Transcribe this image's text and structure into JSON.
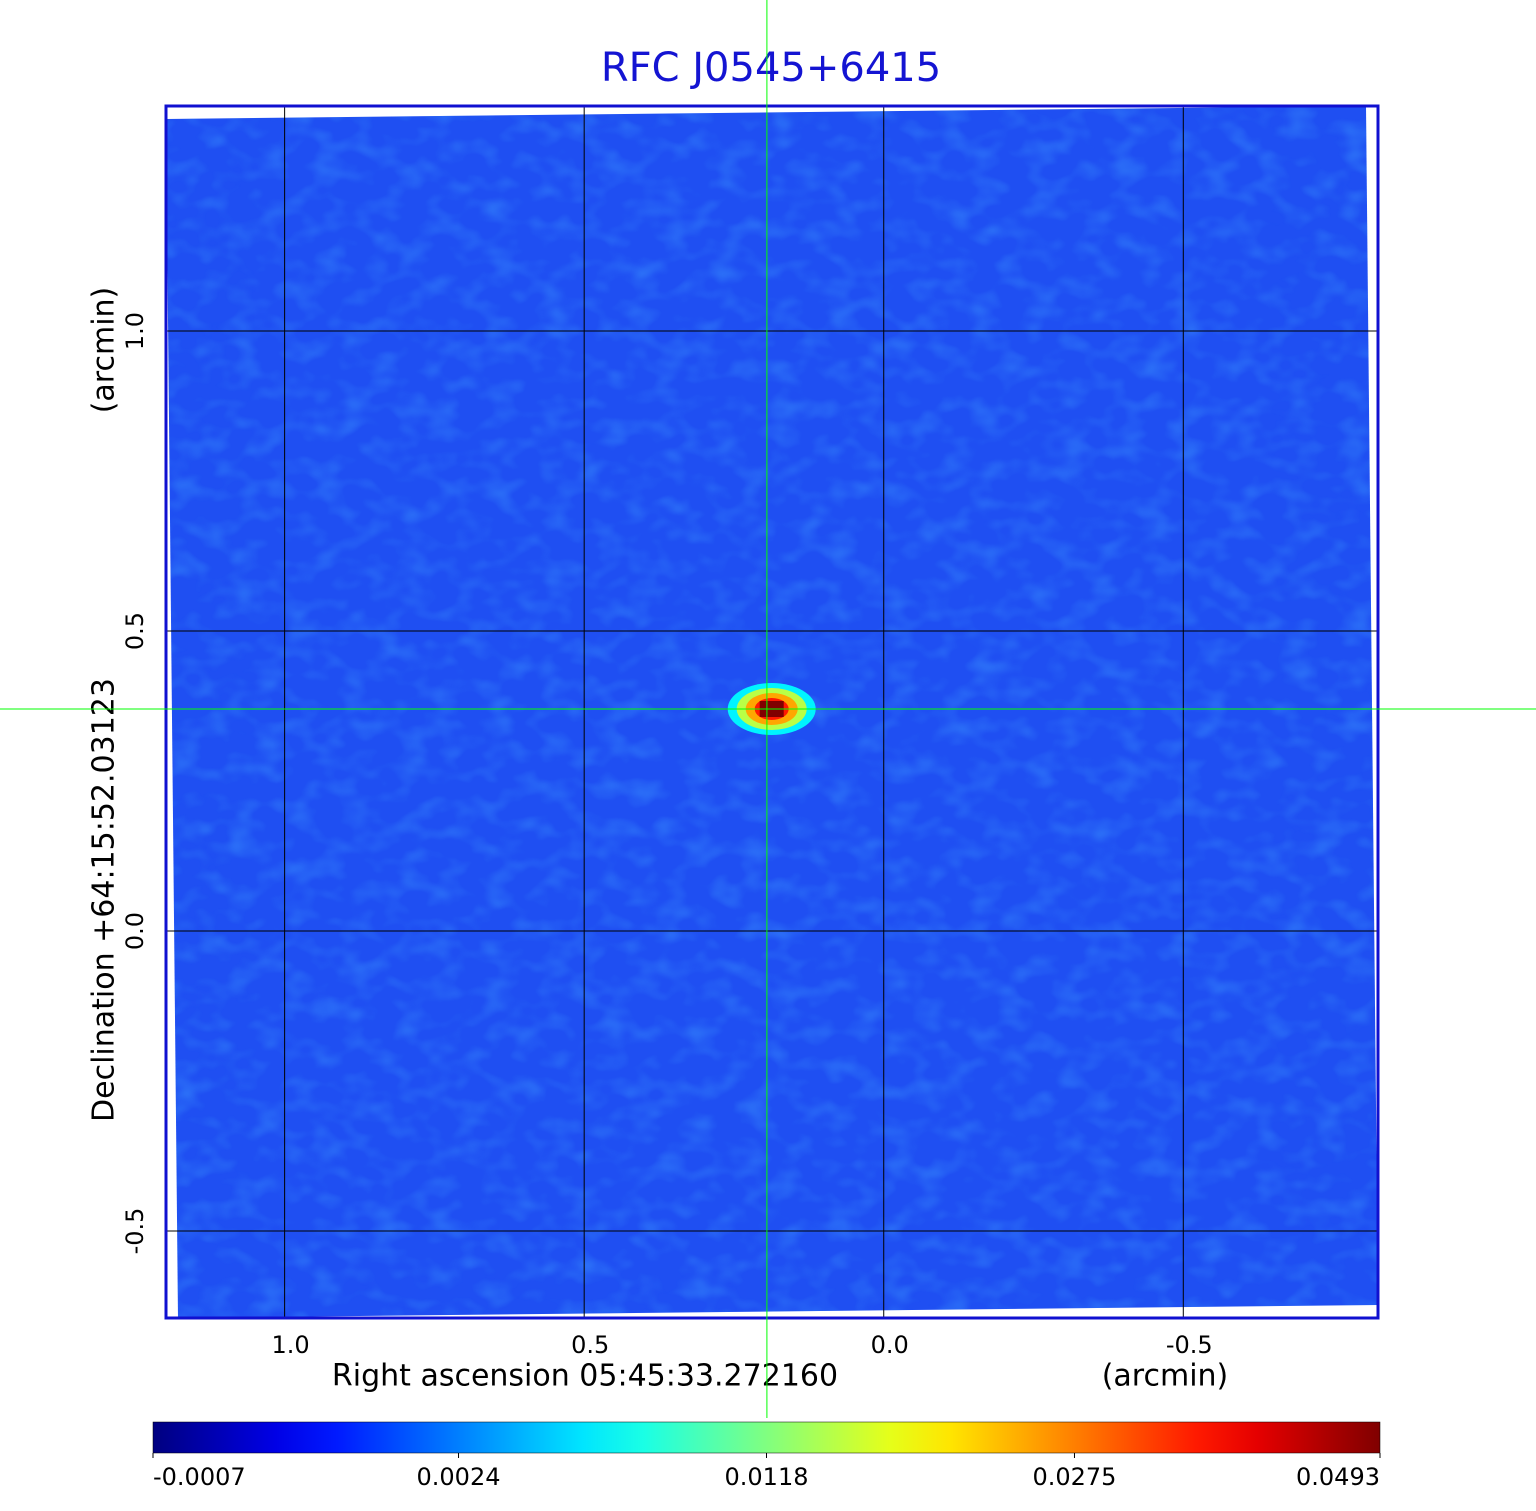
{
  "chart_data": {
    "type": "image",
    "title": "RFC J0545+6415",
    "x_label": "Right ascension  05:45:33.272160",
    "x_unit": "(arcmin)",
    "y_label": "Declination  +64:15:52.03123",
    "y_unit": "(arcmin)",
    "xlim": [
      1.198,
      -0.825
    ],
    "ylim": [
      -0.645,
      1.375
    ],
    "xticks": [
      {
        "value": 1.0,
        "label": "1.0"
      },
      0.5,
      {
        "value": 0.0,
        "label": "0.0"
      },
      -0.5
    ],
    "yticks": [
      -0.5,
      {
        "value": 0.0,
        "label": "0.0"
      },
      0.5,
      {
        "value": 1.0,
        "label": "1.0"
      }
    ],
    "grid": true,
    "crosshair": {
      "x": 0.195,
      "y": 0.37,
      "color": "#00ff00"
    },
    "source": {
      "x": 0.187,
      "y": 0.37,
      "peak": 0.0493
    },
    "colorbar": {
      "colormap": "jet",
      "scale": "sqrt",
      "clim": [
        -0.0007,
        0.0493
      ],
      "ticks": [
        -0.0007,
        0.0024,
        0.0118,
        0.0275,
        0.0493
      ]
    }
  }
}
